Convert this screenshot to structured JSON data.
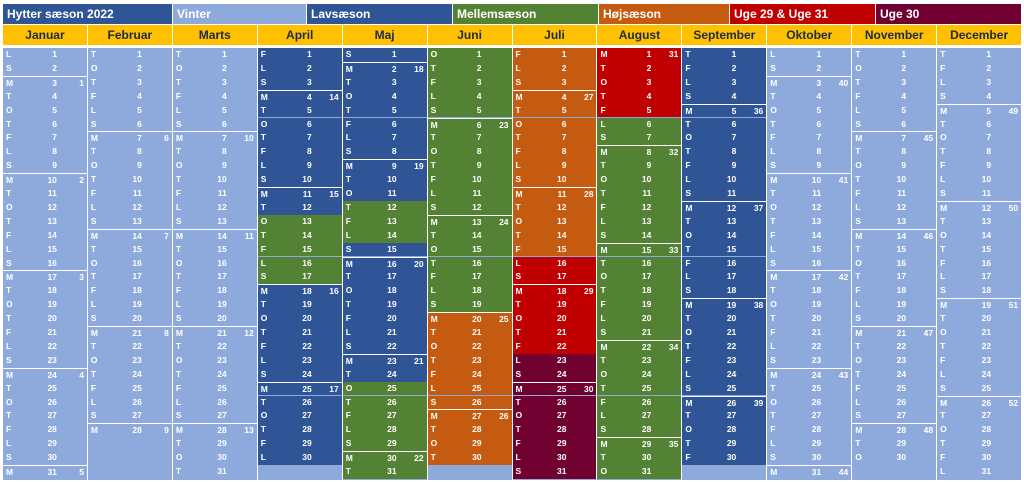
{
  "legend": {
    "title": "Hytter sæson 2022",
    "items": [
      {
        "key": "vinter",
        "label": "Vinter",
        "color": "#8ea9db"
      },
      {
        "key": "lav",
        "label": "Lavsæson",
        "color": "#2f5597"
      },
      {
        "key": "mellem",
        "label": "Mellemsæson",
        "color": "#548235"
      },
      {
        "key": "hoj",
        "label": "Højsæson",
        "color": "#c55a11"
      },
      {
        "key": "uge2931",
        "label": "Uge 29 & Uge 31",
        "color": "#c00000"
      },
      {
        "key": "uge30",
        "label": "Uge 30",
        "color": "#6f0030"
      }
    ],
    "title_color": "#2f5597"
  },
  "header_color": "#ffc000",
  "months": [
    {
      "name": "Januar",
      "days": 31,
      "first_weekday": 5
    },
    {
      "name": "Februar",
      "days": 28,
      "first_weekday": 1
    },
    {
      "name": "Marts",
      "days": 31,
      "first_weekday": 1
    },
    {
      "name": "April",
      "days": 30,
      "first_weekday": 4
    },
    {
      "name": "Maj",
      "days": 31,
      "first_weekday": 6
    },
    {
      "name": "Juni",
      "days": 30,
      "first_weekday": 2
    },
    {
      "name": "Juli",
      "days": 31,
      "first_weekday": 4
    },
    {
      "name": "August",
      "days": 31,
      "first_weekday": 0
    },
    {
      "name": "September",
      "days": 30,
      "first_weekday": 3
    },
    {
      "name": "Oktober",
      "days": 31,
      "first_weekday": 5
    },
    {
      "name": "November",
      "days": 30,
      "first_weekday": 1
    },
    {
      "name": "December",
      "days": 31,
      "first_weekday": 3
    }
  ],
  "weekday_letters": [
    "M",
    "T",
    "O",
    "T",
    "F",
    "L",
    "S"
  ],
  "season_ranges": [
    {
      "month": 1,
      "from": 1,
      "to": 31,
      "season": "vinter"
    },
    {
      "month": 2,
      "from": 1,
      "to": 28,
      "season": "vinter"
    },
    {
      "month": 3,
      "from": 1,
      "to": 31,
      "season": "vinter"
    },
    {
      "month": 4,
      "from": 1,
      "to": 12,
      "season": "lav"
    },
    {
      "month": 4,
      "from": 13,
      "to": 17,
      "season": "mellem"
    },
    {
      "month": 4,
      "from": 18,
      "to": 30,
      "season": "lav"
    },
    {
      "month": 5,
      "from": 1,
      "to": 11,
      "season": "lav"
    },
    {
      "month": 5,
      "from": 12,
      "to": 14,
      "season": "mellem"
    },
    {
      "month": 5,
      "from": 15,
      "to": 24,
      "season": "lav"
    },
    {
      "month": 5,
      "from": 25,
      "to": 31,
      "season": "mellem"
    },
    {
      "month": 6,
      "from": 1,
      "to": 19,
      "season": "mellem"
    },
    {
      "month": 6,
      "from": 20,
      "to": 30,
      "season": "hoj"
    },
    {
      "month": 7,
      "from": 1,
      "to": 15,
      "season": "hoj"
    },
    {
      "month": 7,
      "from": 16,
      "to": 17,
      "season": "uge2931"
    },
    {
      "month": 7,
      "from": 18,
      "to": 22,
      "season": "uge2931"
    },
    {
      "month": 7,
      "from": 23,
      "to": 31,
      "season": "uge30"
    },
    {
      "month": 8,
      "from": 1,
      "to": 5,
      "season": "uge2931"
    },
    {
      "month": 8,
      "from": 6,
      "to": 31,
      "season": "mellem"
    },
    {
      "month": 9,
      "from": 1,
      "to": 30,
      "season": "lav"
    },
    {
      "month": 10,
      "from": 1,
      "to": 31,
      "season": "vinter"
    },
    {
      "month": 11,
      "from": 1,
      "to": 30,
      "season": "vinter"
    },
    {
      "month": 12,
      "from": 1,
      "to": 31,
      "season": "vinter"
    }
  ]
}
